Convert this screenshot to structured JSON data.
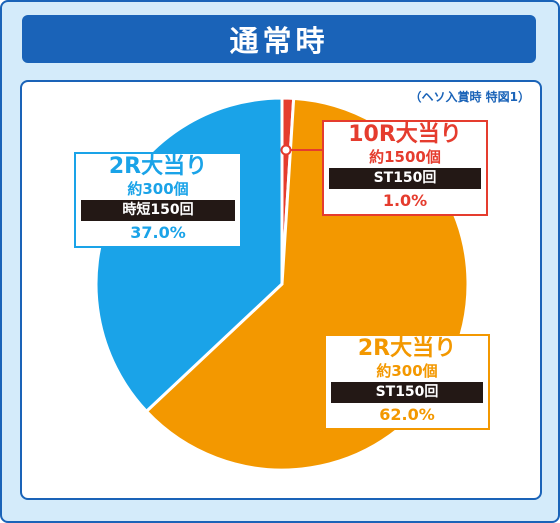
{
  "title": "通常時",
  "note": "（ヘソ入賞時 特図1）",
  "colors": {
    "frame": "#1a63b8",
    "background": "#d4ebfa",
    "red": "#e53c2e",
    "orange": "#f39800",
    "blue": "#1aa3e8"
  },
  "chart_data": {
    "type": "pie",
    "title": "通常時",
    "slices": [
      {
        "label": "10R大当り",
        "rounds_note": "約1500個",
        "tag": "ST150回",
        "value": 1.0,
        "pct_text": "1.0%",
        "color": "#e53c2e"
      },
      {
        "label": "2R大当り",
        "rounds_note": "約300個",
        "tag": "ST150回",
        "value": 62.0,
        "pct_text": "62.0%",
        "color": "#f39800"
      },
      {
        "label": "2R大当り",
        "rounds_note": "約300個",
        "tag": "時短150回",
        "value": 37.0,
        "pct_text": "37.0%",
        "color": "#1aa3e8"
      }
    ]
  }
}
